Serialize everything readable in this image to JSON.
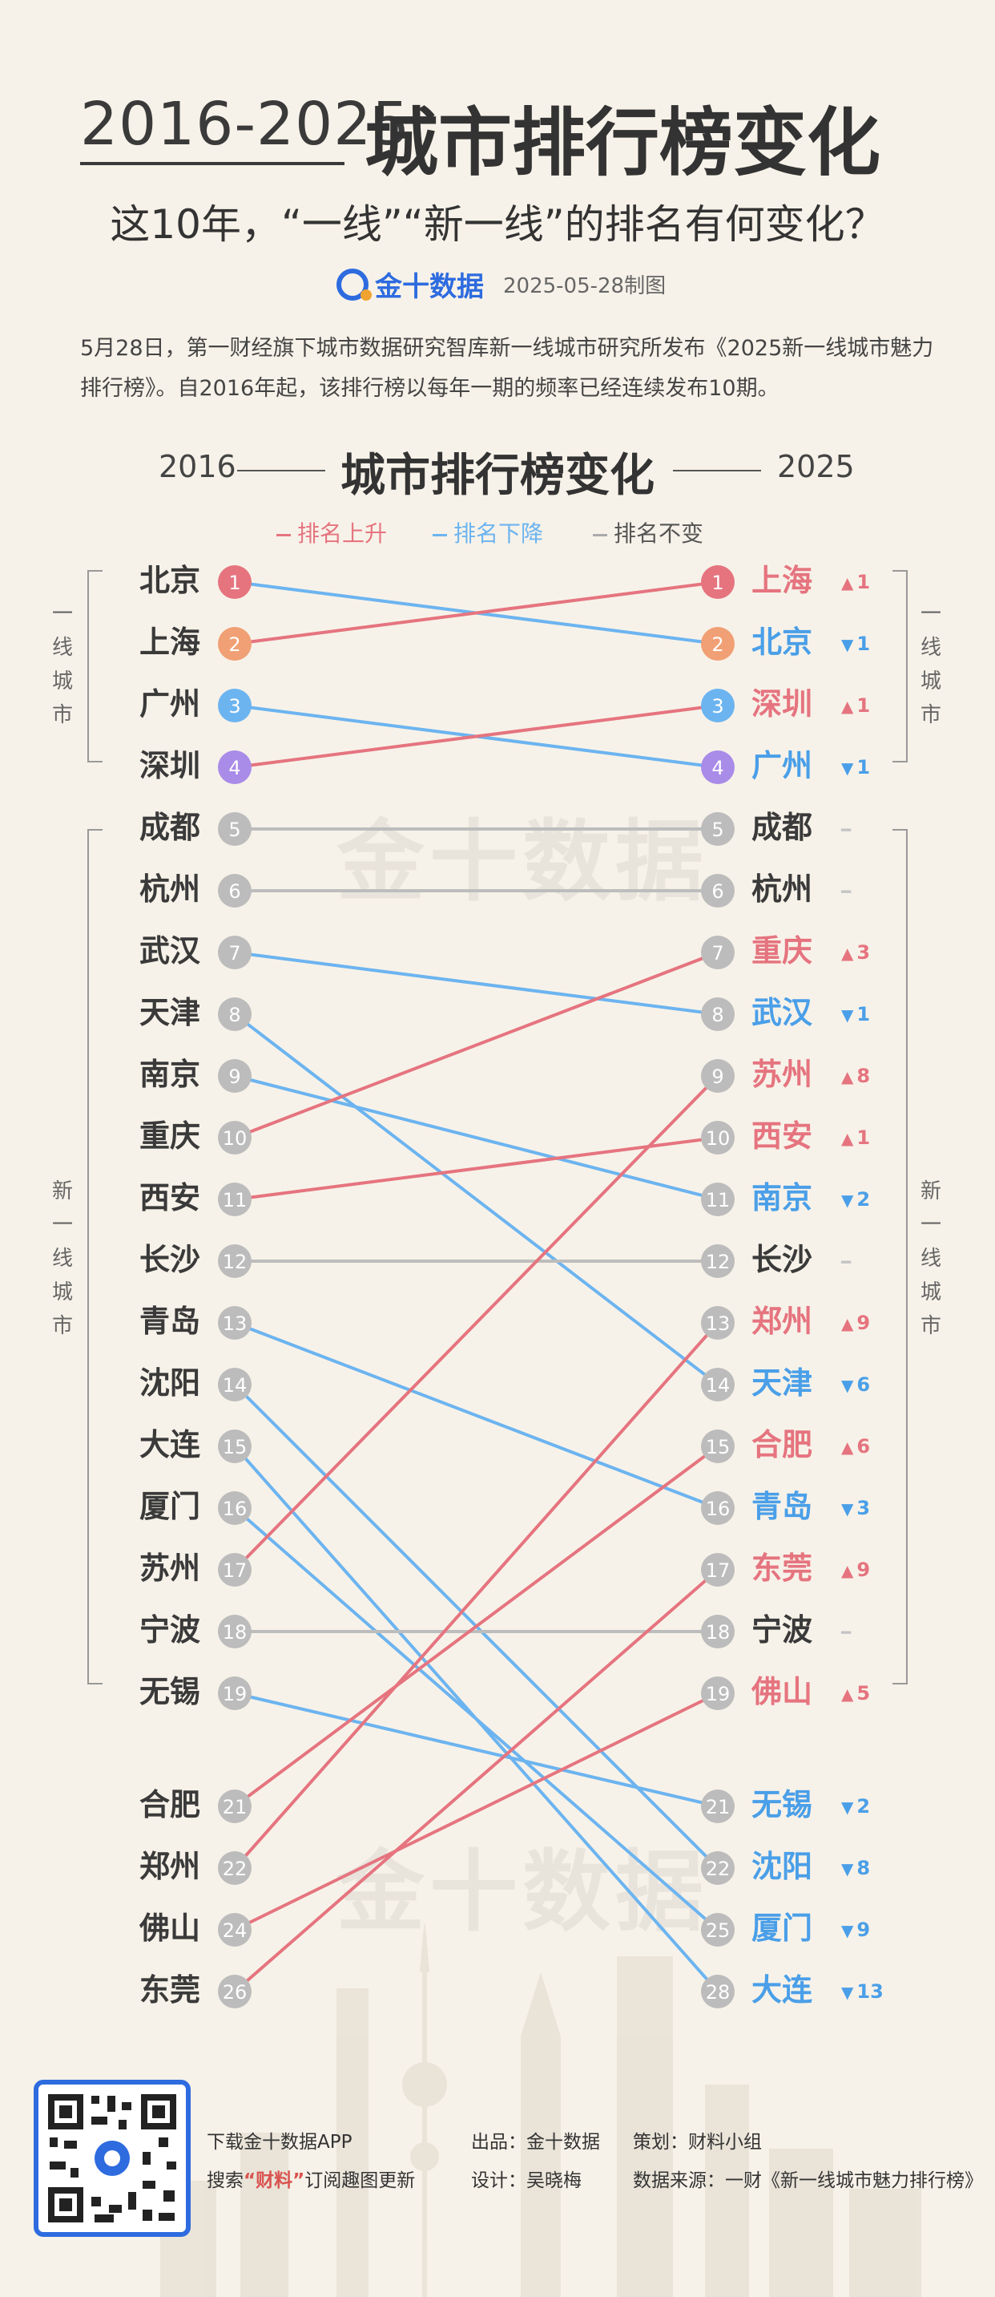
{
  "header": {
    "years": "2016-2025",
    "title": "城市排行榜变化",
    "subtitle": "这10年，“一线”“新一线”的排名有何变化？",
    "brand_name": "金十数据",
    "date": "2025-05-28制图",
    "intro": "5月28日，第一财经旗下城市数据研究智库新一线城市研究所发布《2025新一线城市魅力排行榜》。自2016年起，该排行榜以每年一期的频率已经连续发布10期。"
  },
  "watermark": "金十数据",
  "chart_data": {
    "type": "slope",
    "title": "城市排行榜变化",
    "left_year": "2016",
    "right_year": "2025",
    "legend": [
      "排名上升",
      "排名下降",
      "排名不变"
    ],
    "group_labels": {
      "tier1": "一线城市",
      "new_tier1": "新一线城市"
    },
    "colors": {
      "up": "#e5747f",
      "down": "#6cb4f0",
      "same": "#bdbdbd",
      "rank1": "#e5747f",
      "rank2": "#f0a074",
      "rank3": "#6cb4f0",
      "rank4": "#a98be8",
      "neutral": "#bcbcbc"
    },
    "left": [
      {
        "city": "北京",
        "rank": 1
      },
      {
        "city": "上海",
        "rank": 2
      },
      {
        "city": "广州",
        "rank": 3
      },
      {
        "city": "深圳",
        "rank": 4
      },
      {
        "city": "成都",
        "rank": 5
      },
      {
        "city": "杭州",
        "rank": 6
      },
      {
        "city": "武汉",
        "rank": 7
      },
      {
        "city": "天津",
        "rank": 8
      },
      {
        "city": "南京",
        "rank": 9
      },
      {
        "city": "重庆",
        "rank": 10
      },
      {
        "city": "西安",
        "rank": 11
      },
      {
        "city": "长沙",
        "rank": 12
      },
      {
        "city": "青岛",
        "rank": 13
      },
      {
        "city": "沈阳",
        "rank": 14
      },
      {
        "city": "大连",
        "rank": 15
      },
      {
        "city": "厦门",
        "rank": 16
      },
      {
        "city": "苏州",
        "rank": 17
      },
      {
        "city": "宁波",
        "rank": 18
      },
      {
        "city": "无锡",
        "rank": 19
      },
      {
        "city": "合肥",
        "rank": 21
      },
      {
        "city": "郑州",
        "rank": 22
      },
      {
        "city": "佛山",
        "rank": 24
      },
      {
        "city": "东莞",
        "rank": 26
      }
    ],
    "right": [
      {
        "city": "上海",
        "rank": 1,
        "trend": "up",
        "change": "1"
      },
      {
        "city": "北京",
        "rank": 2,
        "trend": "down",
        "change": "1"
      },
      {
        "city": "深圳",
        "rank": 3,
        "trend": "up",
        "change": "1"
      },
      {
        "city": "广州",
        "rank": 4,
        "trend": "down",
        "change": "1"
      },
      {
        "city": "成都",
        "rank": 5,
        "trend": "same",
        "change": ""
      },
      {
        "city": "杭州",
        "rank": 6,
        "trend": "same",
        "change": ""
      },
      {
        "city": "重庆",
        "rank": 7,
        "trend": "up",
        "change": "3"
      },
      {
        "city": "武汉",
        "rank": 8,
        "trend": "down",
        "change": "1"
      },
      {
        "city": "苏州",
        "rank": 9,
        "trend": "up",
        "change": "8"
      },
      {
        "city": "西安",
        "rank": 10,
        "trend": "up",
        "change": "1"
      },
      {
        "city": "南京",
        "rank": 11,
        "trend": "down",
        "change": "2"
      },
      {
        "city": "长沙",
        "rank": 12,
        "trend": "same",
        "change": ""
      },
      {
        "city": "郑州",
        "rank": 13,
        "trend": "up",
        "change": "9"
      },
      {
        "city": "天津",
        "rank": 14,
        "trend": "down",
        "change": "6"
      },
      {
        "city": "合肥",
        "rank": 15,
        "trend": "up",
        "change": "6"
      },
      {
        "city": "青岛",
        "rank": 16,
        "trend": "down",
        "change": "3"
      },
      {
        "city": "东莞",
        "rank": 17,
        "trend": "up",
        "change": "9"
      },
      {
        "city": "宁波",
        "rank": 18,
        "trend": "same",
        "change": ""
      },
      {
        "city": "佛山",
        "rank": 19,
        "trend": "up",
        "change": "5"
      },
      {
        "city": "无锡",
        "rank": 21,
        "trend": "down",
        "change": "2"
      },
      {
        "city": "沈阳",
        "rank": 22,
        "trend": "down",
        "change": "8"
      },
      {
        "city": "厦门",
        "rank": 25,
        "trend": "down",
        "change": "9"
      },
      {
        "city": "大连",
        "rank": 28,
        "trend": "down",
        "change": "13"
      }
    ]
  },
  "footer": {
    "app_line": "下载金十数据APP",
    "search_prefix": "搜索",
    "search_keyword": "“财料”",
    "search_suffix": "订阅趣图更新",
    "producer": "出品：金十数据",
    "designer": "设计：吴晓梅",
    "planner": "策划：财料小组",
    "source": "数据来源：一财《新一线城市魅力排行榜》"
  }
}
